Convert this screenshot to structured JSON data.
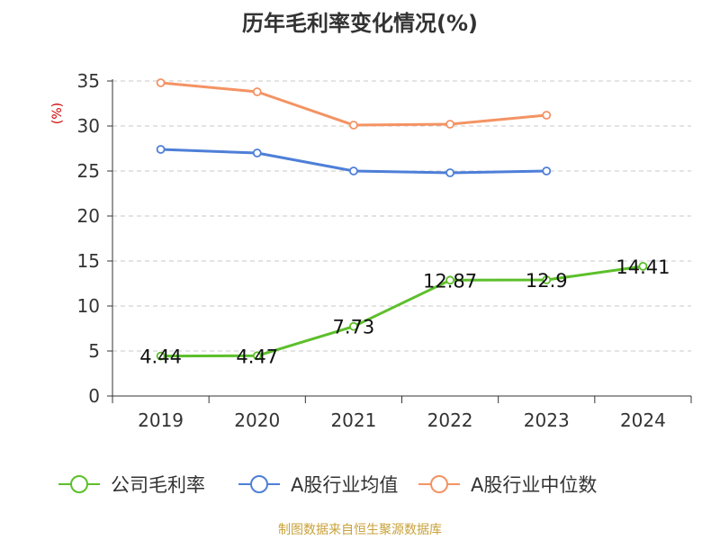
{
  "title": "历年毛利率变化情况(%)",
  "source": "制图数据来自恒生聚源数据库",
  "chart_data": {
    "type": "line",
    "ylabel": "(%)",
    "ylim": [
      0,
      35
    ],
    "yticks": [
      0,
      5,
      10,
      15,
      20,
      25,
      30,
      35
    ],
    "categories": [
      "2019",
      "2020",
      "2021",
      "2022",
      "2023",
      "2024"
    ],
    "grid": true,
    "legend_position": "bottom",
    "series": [
      {
        "name": "公司毛利率",
        "color": "#5cbf2a",
        "values": [
          4.44,
          4.47,
          7.73,
          12.87,
          12.9,
          14.41
        ],
        "labels": [
          "4.44",
          "4.47",
          "7.73",
          "12.87",
          "12.9",
          "14.41"
        ]
      },
      {
        "name": "A股行业均值",
        "color": "#4e7fd8",
        "values": [
          27.4,
          27.0,
          25.0,
          24.8,
          25.0,
          null
        ]
      },
      {
        "name": "A股行业中位数",
        "color": "#f49363",
        "values": [
          34.8,
          33.8,
          30.1,
          30.2,
          31.2,
          null
        ]
      }
    ]
  }
}
